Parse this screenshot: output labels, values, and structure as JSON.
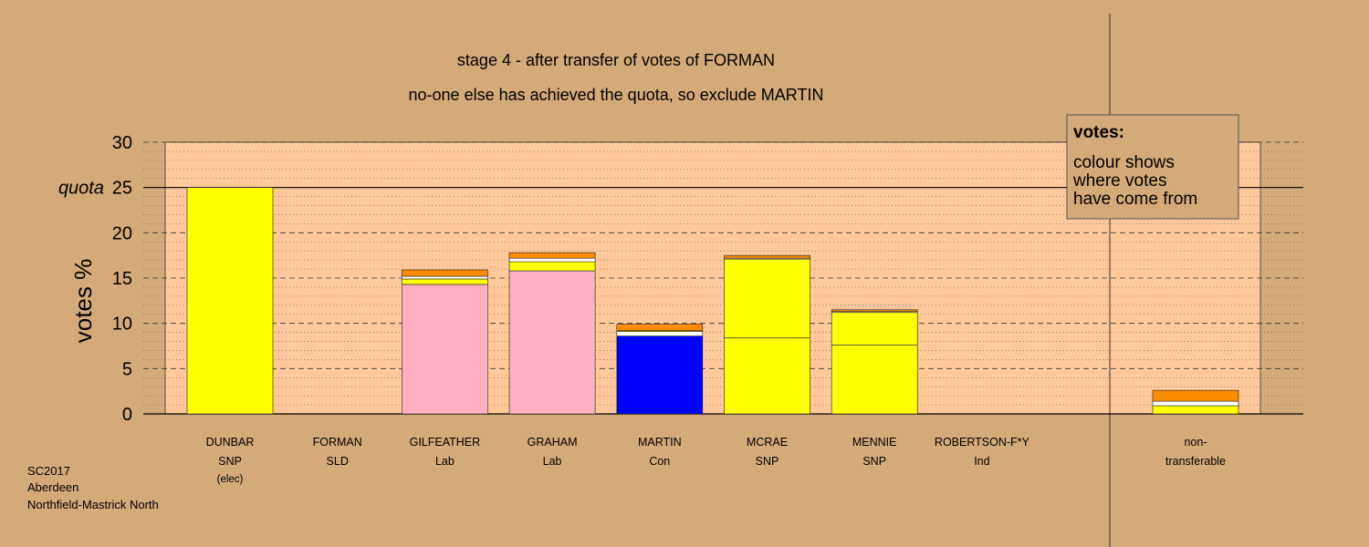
{
  "titles": {
    "line1": "stage 4 - after transfer of votes of FORMAN",
    "line2": "no-one else has achieved the quota, so exclude MARTIN"
  },
  "legend": {
    "heading": "votes:",
    "lines": [
      "colour shows",
      "where votes",
      "have come from"
    ]
  },
  "footer": [
    "SC2017",
    "Aberdeen",
    "Northfield-Mastrick North"
  ],
  "colors": {
    "background": "#d4aa78",
    "plot": "#ffc89a",
    "snp": "#ffff00",
    "lab": "#ffb0c0",
    "con": "#0000ff",
    "sld": "#ff8c00",
    "other": "#ffffff"
  },
  "chart_data": {
    "type": "bar",
    "stacked": true,
    "ylabel": "votes %",
    "ylim": [
      0,
      30
    ],
    "yticks": [
      0,
      5,
      10,
      15,
      20,
      25,
      30
    ],
    "quota": 25,
    "quota_label": "quota",
    "candidates": [
      {
        "name": "DUNBAR",
        "party": "SNP",
        "note": "(elec)",
        "segments": [
          {
            "color": "#ffff00",
            "value": 25.0
          }
        ]
      },
      {
        "name": "FORMAN",
        "party": "SLD",
        "segments": []
      },
      {
        "name": "GILFEATHER",
        "party": "Lab",
        "segments": [
          {
            "color": "#ffb0c0",
            "value": 14.3
          },
          {
            "color": "#ffff00",
            "value": 0.6
          },
          {
            "color": "#ffffff",
            "value": 0.3
          },
          {
            "color": "#ff8c00",
            "value": 0.7
          }
        ]
      },
      {
        "name": "GRAHAM",
        "party": "Lab",
        "segments": [
          {
            "color": "#ffb0c0",
            "value": 15.8
          },
          {
            "color": "#ffff00",
            "value": 1.0
          },
          {
            "color": "#ffffff",
            "value": 0.4
          },
          {
            "color": "#ff8c00",
            "value": 0.6
          }
        ]
      },
      {
        "name": "MARTIN",
        "party": "Con",
        "segments": [
          {
            "color": "#0000ff",
            "value": 8.6
          },
          {
            "color": "#ffffff",
            "value": 0.5
          },
          {
            "color": "#ffff00",
            "value": 0.1
          },
          {
            "color": "#ff8c00",
            "value": 0.7
          }
        ]
      },
      {
        "name": "MCRAE",
        "party": "SNP",
        "segments": [
          {
            "color": "#ffff00",
            "value": 8.4
          },
          {
            "color": "#ffff00",
            "value": 8.7
          },
          {
            "color": "#ffffff",
            "value": 0.1
          },
          {
            "color": "#ff8c00",
            "value": 0.3
          }
        ]
      },
      {
        "name": "MENNIE",
        "party": "SNP",
        "segments": [
          {
            "color": "#ffff00",
            "value": 7.6
          },
          {
            "color": "#ffff00",
            "value": 3.6
          },
          {
            "color": "#ffffff",
            "value": 0.1
          },
          {
            "color": "#ff8c00",
            "value": 0.2
          }
        ]
      },
      {
        "name": "ROBERTSON-F*Y",
        "party": "Ind",
        "segments": []
      }
    ],
    "nontransferable": {
      "label1": "non-",
      "label2": "transferable",
      "segments": [
        {
          "color": "#ffff00",
          "value": 0.9
        },
        {
          "color": "#ffffff",
          "value": 0.5
        },
        {
          "color": "#ff8c00",
          "value": 1.2
        }
      ]
    }
  }
}
